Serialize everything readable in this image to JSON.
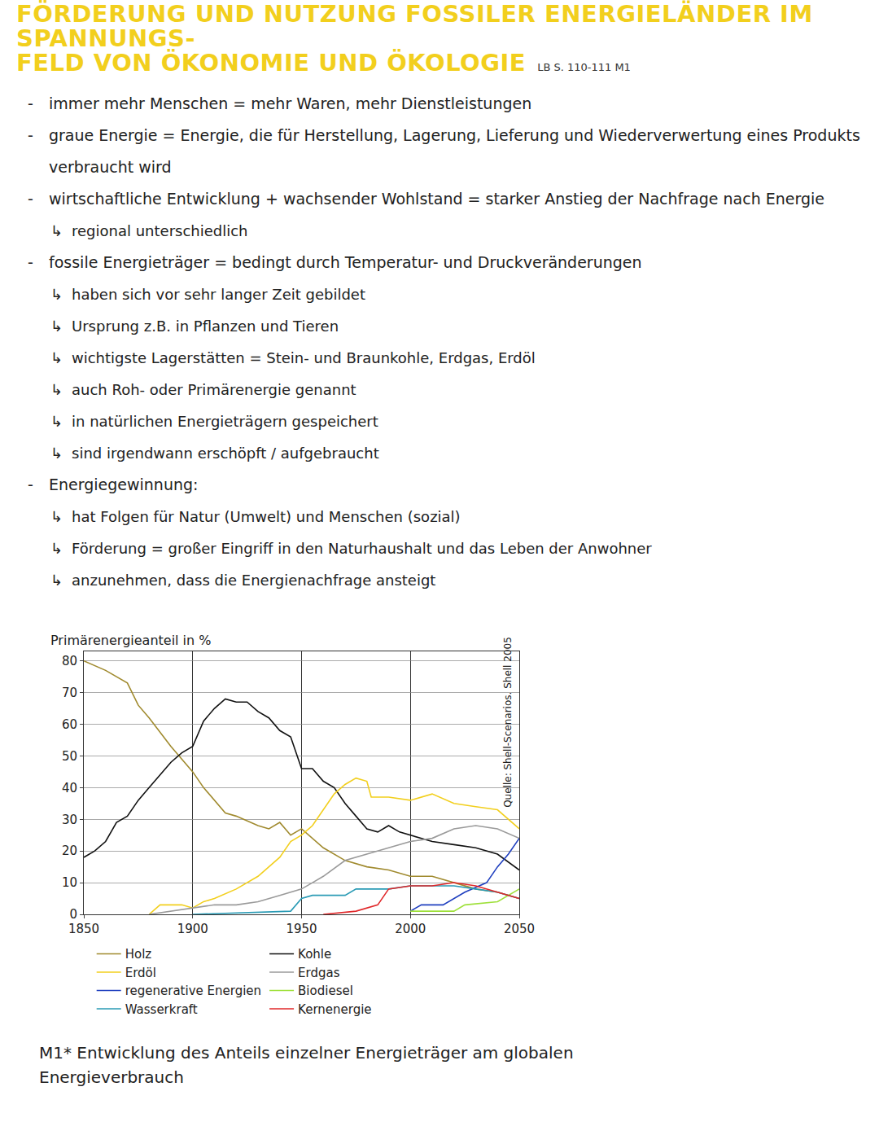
{
  "header": {
    "title_lines": [
      "FÖRDERUNG UND NUTZUNG FOSSILER ENERGIELÄNDER IM SPANNUNGS-",
      "FELD VON ÖKONOMIE UND ÖKOLOGIE"
    ],
    "reference": "LB S. 110-111 M1"
  },
  "notes": [
    {
      "text": "immer mehr Menschen = mehr Waren, mehr Dienstleistungen",
      "sub": []
    },
    {
      "text": "graue Energie = Energie, die für Herstellung, Lagerung, Lieferung und Wiederverwertung eines Produkts verbraucht wird",
      "sub": []
    },
    {
      "text": "wirtschaftliche Entwicklung + wachsender Wohlstand = starker Anstieg der Nachfrage nach Energie",
      "sub": [
        "regional unterschiedlich"
      ]
    },
    {
      "text": "fossile Energieträger = bedingt durch Temperatur- und Druckveränderungen",
      "sub": [
        "haben sich vor sehr langer Zeit gebildet",
        "Ursprung z.B. in Pflanzen und Tieren",
        "wichtigste Lagerstätten = Stein- und Braunkohle, Erdgas, Erdöl",
        "auch Roh- oder Primärenergie genannt",
        "in natürlichen Energieträgern gespeichert",
        "sind irgendwann erschöpft / aufgebraucht"
      ]
    },
    {
      "text": "Energiegewinnung:",
      "sub": [
        "hat Folgen für Natur (Umwelt) und Menschen (sozial)",
        "Förderung = großer Eingriff in den Naturhaushalt und das Leben der Anwohner",
        "anzunehmen, dass die Energienachfrage ansteigt"
      ]
    }
  ],
  "chart_data": {
    "type": "line",
    "ylabel": "Primärenergieanteil in %",
    "source": "Quelle: Shell-Scenarios. Shell 2005",
    "caption": "M1* Entwicklung des Anteils einzelner Energieträger am globalen Energieverbrauch",
    "xlim": [
      1850,
      2050
    ],
    "xticks": [
      1850,
      1900,
      1950,
      2000,
      2050
    ],
    "ylim": [
      0,
      83
    ],
    "yticks": [
      0,
      10,
      20,
      30,
      40,
      50,
      60,
      70,
      80
    ],
    "grid": true,
    "legend": "bottom",
    "series": [
      {
        "name": "Holz",
        "color": "#a08a2e",
        "x": [
          1850,
          1860,
          1870,
          1875,
          1880,
          1890,
          1900,
          1905,
          1915,
          1920,
          1930,
          1935,
          1940,
          1945,
          1950,
          1955,
          1960,
          1970,
          1980,
          1990,
          2000,
          2010,
          2020,
          2030,
          2040,
          2050
        ],
        "values": [
          80,
          77,
          73,
          66,
          62,
          53,
          45,
          40,
          32,
          31,
          28,
          27,
          29,
          25,
          27,
          24,
          21,
          17,
          15,
          14,
          12,
          12,
          10,
          8,
          7,
          5
        ]
      },
      {
        "name": "Kohle",
        "color": "#111111",
        "x": [
          1850,
          1855,
          1860,
          1865,
          1870,
          1875,
          1880,
          1890,
          1895,
          1900,
          1905,
          1910,
          1915,
          1920,
          1925,
          1930,
          1935,
          1940,
          1945,
          1950,
          1955,
          1960,
          1965,
          1970,
          1975,
          1980,
          1985,
          1990,
          1995,
          2000,
          2010,
          2020,
          2030,
          2040,
          2050
        ],
        "values": [
          18,
          20,
          23,
          29,
          31,
          36,
          40,
          48,
          51,
          53,
          61,
          65,
          68,
          67,
          67,
          64,
          62,
          58,
          56,
          46,
          46,
          42,
          40,
          35,
          31,
          27,
          26,
          28,
          26,
          25,
          23,
          22,
          21,
          19,
          14
        ]
      },
      {
        "name": "Erdöl",
        "color": "#f2cf1d",
        "x": [
          1880,
          1885,
          1895,
          1900,
          1905,
          1910,
          1920,
          1930,
          1935,
          1940,
          1945,
          1950,
          1955,
          1960,
          1965,
          1970,
          1975,
          1980,
          1982,
          1990,
          2000,
          2010,
          2020,
          2030,
          2040,
          2050
        ],
        "values": [
          0,
          3,
          3,
          2,
          4,
          5,
          8,
          12,
          15,
          18,
          23,
          25,
          28,
          33,
          38,
          41,
          43,
          42,
          37,
          37,
          36,
          38,
          35,
          34,
          33,
          27
        ]
      },
      {
        "name": "Erdgas",
        "color": "#9a9a9a",
        "x": [
          1880,
          1890,
          1900,
          1910,
          1920,
          1930,
          1940,
          1950,
          1955,
          1960,
          1970,
          1980,
          1990,
          2000,
          2010,
          2020,
          2030,
          2040,
          2050
        ],
        "values": [
          0,
          1,
          2,
          3,
          3,
          4,
          6,
          8,
          10,
          12,
          17,
          19,
          21,
          23,
          24,
          27,
          28,
          27,
          24
        ]
      },
      {
        "name": "regenerative Energien",
        "color": "#1f3fbf",
        "x": [
          2000,
          2005,
          2015,
          2025,
          2035,
          2040,
          2045,
          2050
        ],
        "values": [
          1,
          3,
          3,
          7,
          10,
          15,
          19,
          24
        ]
      },
      {
        "name": "Biodiesel",
        "color": "#9ee03a",
        "x": [
          2000,
          2020,
          2025,
          2040,
          2050
        ],
        "values": [
          1,
          1,
          3,
          4,
          8
        ]
      },
      {
        "name": "Wasserkraft",
        "color": "#2a9bb5",
        "x": [
          1900,
          1945,
          1950,
          1955,
          1970,
          1975,
          1990,
          2000,
          2010,
          2020,
          2030,
          2040,
          2050
        ],
        "values": [
          0,
          1,
          5,
          6,
          6,
          8,
          8,
          9,
          9,
          9,
          8,
          7,
          5
        ]
      },
      {
        "name": "Kernenergie",
        "color": "#e0282a",
        "x": [
          1960,
          1975,
          1985,
          1990,
          2000,
          2010,
          2020,
          2030,
          2040,
          2050
        ],
        "values": [
          0,
          1,
          3,
          8,
          9,
          9,
          10,
          9,
          7,
          5
        ]
      }
    ]
  }
}
